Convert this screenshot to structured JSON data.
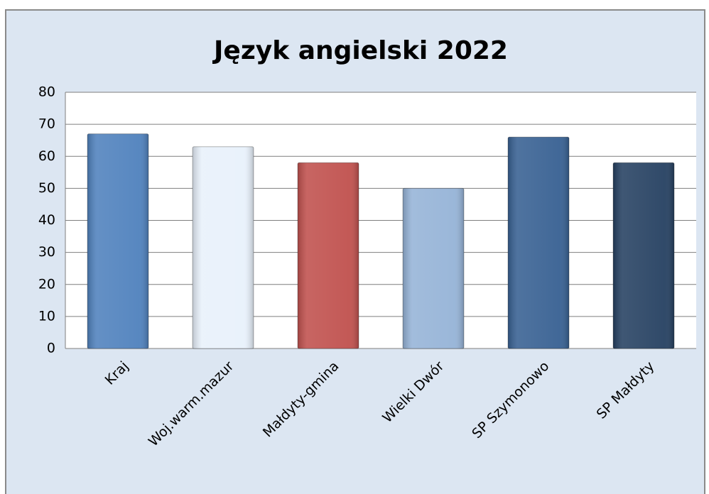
{
  "chart_data": {
    "type": "bar",
    "title": "Język angielski 2022",
    "categories": [
      "Kraj",
      "Woj.warm.mazur",
      "Małdyty-gmina",
      "Wielki Dwór",
      "SP Szymonowo",
      "SP Małdyty"
    ],
    "values": [
      67,
      63,
      58,
      50,
      66,
      58
    ],
    "colors": [
      "#4f81bd",
      "#e8f1fb",
      "#c0504d",
      "#95b3d7",
      "#376092",
      "#254061"
    ],
    "ylim": [
      0,
      80
    ],
    "yticks": [
      0,
      10,
      20,
      30,
      40,
      50,
      60,
      70,
      80
    ],
    "grid": true
  }
}
